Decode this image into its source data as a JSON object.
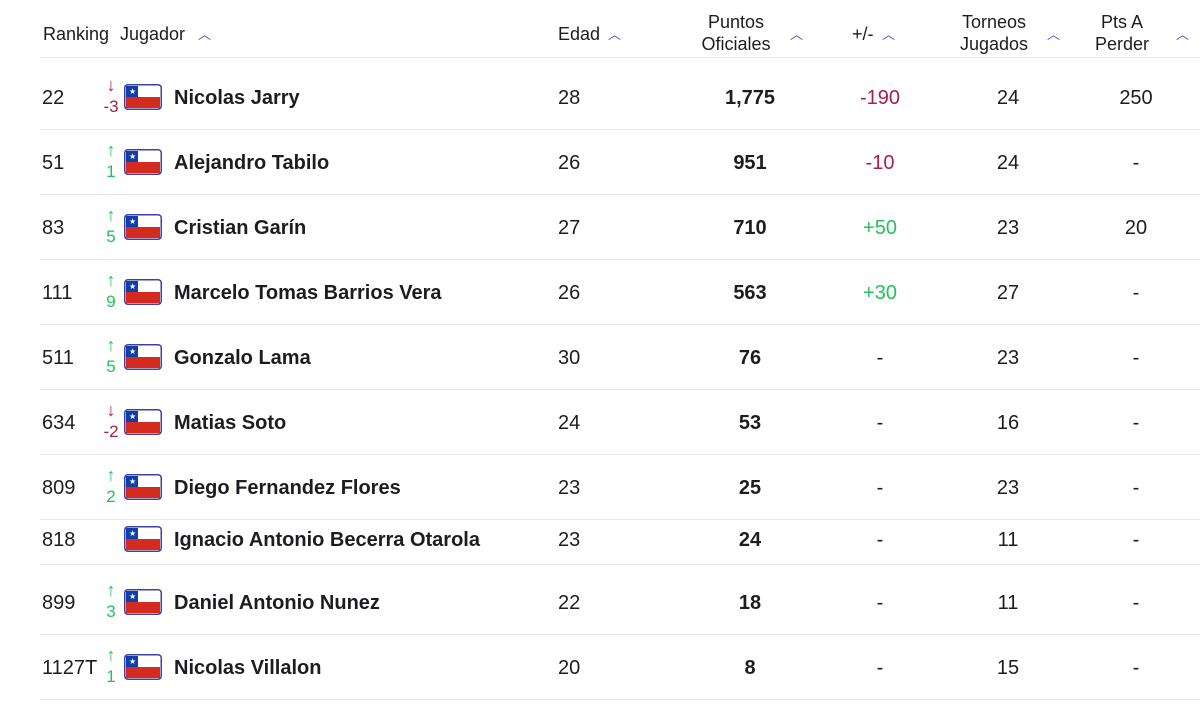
{
  "headers": {
    "ranking": "Ranking",
    "jugador": "Jugador",
    "edad": "Edad",
    "puntos_line1": "Puntos",
    "puntos_line2": "Oficiales",
    "diff": "+/-",
    "torneos_line1": "Torneos",
    "torneos_line2": "Jugados",
    "perder_line1": "Pts A",
    "perder_line2": "Perder",
    "sort_icon": "chevron-up-icon"
  },
  "colors": {
    "up": "#22c25a",
    "down": "#a3214e",
    "sort": "#3a4cd6",
    "flag_red": "#d52b1e",
    "flag_blue": "#0f3fa8"
  },
  "rows": [
    {
      "rank": "22",
      "direction": "down",
      "move": "-3",
      "name": "Nicolas Jarry",
      "age": "28",
      "points": "1,775",
      "diff": "-190",
      "diff_type": "neg",
      "tournaments": "24",
      "to_lose": "250",
      "flag": "chile-flag-icon"
    },
    {
      "rank": "51",
      "direction": "up",
      "move": "1",
      "name": "Alejandro Tabilo",
      "age": "26",
      "points": "951",
      "diff": "-10",
      "diff_type": "neg",
      "tournaments": "24",
      "to_lose": "-",
      "flag": "chile-flag-icon"
    },
    {
      "rank": "83",
      "direction": "up",
      "move": "5",
      "name": "Cristian Garín",
      "age": "27",
      "points": "710",
      "diff": "+50",
      "diff_type": "pos",
      "tournaments": "23",
      "to_lose": "20",
      "flag": "chile-flag-icon"
    },
    {
      "rank": "111",
      "direction": "up",
      "move": "9",
      "name": "Marcelo Tomas Barrios Vera",
      "age": "26",
      "points": "563",
      "diff": "+30",
      "diff_type": "pos",
      "tournaments": "27",
      "to_lose": "-",
      "flag": "chile-flag-icon"
    },
    {
      "rank": "511",
      "direction": "up",
      "move": "5",
      "name": "Gonzalo Lama",
      "age": "30",
      "points": "76",
      "diff": "-",
      "diff_type": "none",
      "tournaments": "23",
      "to_lose": "-",
      "flag": "chile-flag-icon"
    },
    {
      "rank": "634",
      "direction": "down",
      "move": "-2",
      "name": "Matias Soto",
      "age": "24",
      "points": "53",
      "diff": "-",
      "diff_type": "none",
      "tournaments": "16",
      "to_lose": "-",
      "flag": "chile-flag-icon"
    },
    {
      "rank": "809",
      "direction": "up",
      "move": "2",
      "name": "Diego Fernandez Flores",
      "age": "23",
      "points": "25",
      "diff": "-",
      "diff_type": "none",
      "tournaments": "23",
      "to_lose": "-",
      "flag": "chile-flag-icon"
    },
    {
      "rank": "818",
      "direction": "none",
      "move": "",
      "name": "Ignacio Antonio Becerra Otarola",
      "age": "23",
      "points": "24",
      "diff": "-",
      "diff_type": "none",
      "tournaments": "11",
      "to_lose": "-",
      "flag": "chile-flag-icon"
    },
    {
      "rank": "899",
      "direction": "up",
      "move": "3",
      "name": "Daniel Antonio Nunez",
      "age": "22",
      "points": "18",
      "diff": "-",
      "diff_type": "none",
      "tournaments": "11",
      "to_lose": "-",
      "flag": "chile-flag-icon"
    },
    {
      "rank": "1127T",
      "direction": "up",
      "move": "1",
      "name": "Nicolas Villalon",
      "age": "20",
      "points": "8",
      "diff": "-",
      "diff_type": "none",
      "tournaments": "15",
      "to_lose": "-",
      "flag": "chile-flag-icon"
    }
  ]
}
